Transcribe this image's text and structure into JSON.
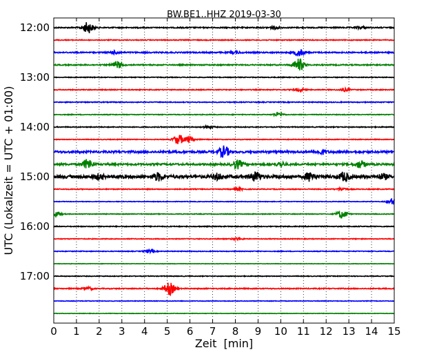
{
  "chart_data": {
    "type": "line",
    "title": "BW.BE1..HHZ 2019-03-30",
    "xlabel": "Zeit  [min]",
    "ylabel": "UTC (Lokalzeit = UTC + 01:00)",
    "xlim": [
      0,
      15
    ],
    "x_ticks": [
      "0",
      "1",
      "2",
      "3",
      "4",
      "5",
      "6",
      "7",
      "8",
      "9",
      "10",
      "11",
      "12",
      "13",
      "14",
      "15"
    ],
    "y_ticks": [
      {
        "label": "12:00",
        "row": 0
      },
      {
        "label": "13:00",
        "row": 4
      },
      {
        "label": "14:00",
        "row": 8
      },
      {
        "label": "15:00",
        "row": 12
      },
      {
        "label": "16:00",
        "row": 16
      },
      {
        "label": "17:00",
        "row": 20
      }
    ],
    "grid": "vertical-dotted",
    "colors": [
      "#000000",
      "#ff0000",
      "#0000ff",
      "#008000"
    ],
    "rows": [
      {
        "start": "12:00",
        "color": "#000000",
        "noise": 0.8,
        "events": [
          {
            "t": 1.5,
            "a": 8
          },
          {
            "t": 9.7,
            "a": 2
          },
          {
            "t": 13.5,
            "a": 1.5
          }
        ]
      },
      {
        "start": "12:15",
        "color": "#ff0000",
        "noise": 0.6,
        "events": []
      },
      {
        "start": "12:30",
        "color": "#0000ff",
        "noise": 0.9,
        "events": [
          {
            "t": 2.7,
            "a": 2
          },
          {
            "t": 8,
            "a": 1.5
          },
          {
            "t": 10.8,
            "a": 5
          }
        ]
      },
      {
        "start": "12:45",
        "color": "#008000",
        "noise": 0.8,
        "events": [
          {
            "t": 2.8,
            "a": 5
          },
          {
            "t": 10.8,
            "a": 9
          }
        ]
      },
      {
        "start": "13:00",
        "color": "#000000",
        "noise": 0.5,
        "events": []
      },
      {
        "start": "13:15",
        "color": "#ff0000",
        "noise": 0.6,
        "events": [
          {
            "t": 10.8,
            "a": 2
          },
          {
            "t": 12.8,
            "a": 2
          }
        ]
      },
      {
        "start": "13:30",
        "color": "#0000ff",
        "noise": 0.6,
        "events": []
      },
      {
        "start": "13:45",
        "color": "#008000",
        "noise": 0.5,
        "events": [
          {
            "t": 9.9,
            "a": 3
          }
        ]
      },
      {
        "start": "14:00",
        "color": "#000000",
        "noise": 0.6,
        "events": [
          {
            "t": 6.8,
            "a": 2
          }
        ]
      },
      {
        "start": "14:15",
        "color": "#ff0000",
        "noise": 0.5,
        "events": [
          {
            "t": 5.5,
            "a": 7
          },
          {
            "t": 6,
            "a": 4
          }
        ]
      },
      {
        "start": "14:30",
        "color": "#0000ff",
        "noise": 1.5,
        "events": [
          {
            "t": 7.5,
            "a": 8
          },
          {
            "t": 11.8,
            "a": 3
          }
        ]
      },
      {
        "start": "14:45",
        "color": "#008000",
        "noise": 1.3,
        "events": [
          {
            "t": 1.5,
            "a": 7
          },
          {
            "t": 8.1,
            "a": 6
          },
          {
            "t": 10,
            "a": 3
          },
          {
            "t": 13.5,
            "a": 5
          }
        ]
      },
      {
        "start": "15:00",
        "color": "#000000",
        "noise": 2.2,
        "events": [
          {
            "t": 2,
            "a": 3
          },
          {
            "t": 4.6,
            "a": 5
          },
          {
            "t": 7.2,
            "a": 4
          },
          {
            "t": 8.9,
            "a": 6
          },
          {
            "t": 11.3,
            "a": 6
          },
          {
            "t": 12.8,
            "a": 6
          },
          {
            "t": 14.5,
            "a": 3
          }
        ]
      },
      {
        "start": "15:15",
        "color": "#ff0000",
        "noise": 0.6,
        "events": [
          {
            "t": 8.1,
            "a": 2
          },
          {
            "t": 12.7,
            "a": 2
          }
        ]
      },
      {
        "start": "15:30",
        "color": "#0000ff",
        "noise": 0.4,
        "events": [
          {
            "t": 14.9,
            "a": 4
          }
        ]
      },
      {
        "start": "15:45",
        "color": "#008000",
        "noise": 0.5,
        "events": [
          {
            "t": 0.1,
            "a": 4
          },
          {
            "t": 12.7,
            "a": 6
          }
        ]
      },
      {
        "start": "16:00",
        "color": "#000000",
        "noise": 0.6,
        "events": []
      },
      {
        "start": "16:15",
        "color": "#ff0000",
        "noise": 0.5,
        "events": [
          {
            "t": 8.1,
            "a": 2
          }
        ]
      },
      {
        "start": "16:30",
        "color": "#0000ff",
        "noise": 0.5,
        "events": [
          {
            "t": 4.2,
            "a": 2
          }
        ]
      },
      {
        "start": "16:45",
        "color": "#008000",
        "noise": 0.3,
        "events": []
      },
      {
        "start": "17:00",
        "color": "#000000",
        "noise": 0.5,
        "events": []
      },
      {
        "start": "17:15",
        "color": "#ff0000",
        "noise": 0.7,
        "events": [
          {
            "t": 1.5,
            "a": 2
          },
          {
            "t": 5.1,
            "a": 9
          }
        ]
      },
      {
        "start": "17:30",
        "color": "#0000ff",
        "noise": 0.4,
        "events": []
      },
      {
        "start": "17:45",
        "color": "#008000",
        "noise": 0.3,
        "events": []
      }
    ]
  }
}
